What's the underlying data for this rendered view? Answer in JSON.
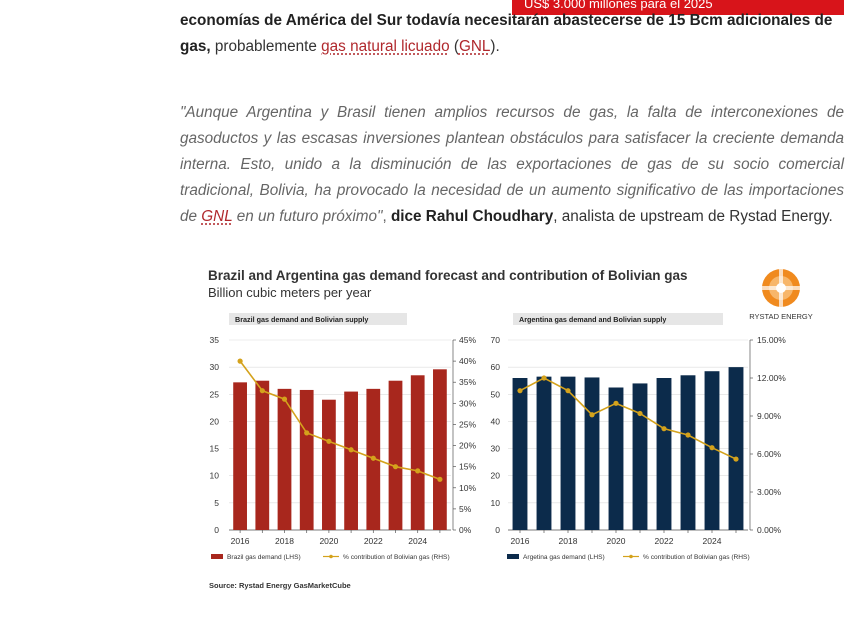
{
  "article": {
    "banner_text": "US$ 3.000 millones para el 2025",
    "line0_fragment": "economías",
    "p1_bold_a": "economías de América del Sur todavía necesitarán abastecerse de 15 Bcm adicionales de gas,",
    "p1_text_b": " probablemente ",
    "p1_link_a": "gas natural licuado",
    "p1_text_c": " (",
    "p1_link_b": "GNL",
    "p1_text_d": ").",
    "quote_a": "\"Aunque Argentina y Brasil tienen amplios recursos de gas, la falta de interconexiones de gasoductos y las escasas inversiones plantean obstáculos para satisfacer la creciente demanda interna. Esto, unido a la disminución de las exportaciones de gas de su socio comercial tradicional, Bolivia, ha provocado la necesidad de un aumento significativo de las importaciones de ",
    "quote_link": "GNL",
    "quote_b": " en un futuro próximo\"",
    "quote_c": ", ",
    "quote_bold": "dice Rahul Choudhary",
    "quote_d": ", analista de upstream de Rystad Energy."
  },
  "figure": {
    "title": "Brazil and Argentina gas demand forecast and contribution of Bolivian gas",
    "subtitle": "Billion cubic meters per year",
    "brand": "RYSTAD ENERGY",
    "source": "Source: Rystad Energy GasMarketCube",
    "colors": {
      "brazil_bar": "#a8271d",
      "argentina_bar": "#0c2b4b",
      "line": "#d4a21c",
      "panel": "#e6e6e6",
      "grid": "#dcdcdc"
    }
  },
  "chart_data": [
    {
      "type": "bar",
      "title": "Brazil gas demand and Bolivian supply",
      "x": [
        2016,
        2017,
        2018,
        2019,
        2020,
        2021,
        2022,
        2023,
        2024,
        2025
      ],
      "xticks": [
        "2016",
        "2018",
        "2020",
        "2022",
        "2024"
      ],
      "series": [
        {
          "name": "Brazil gas demand (LHS)",
          "type": "bar",
          "axis": "left",
          "values": [
            27.2,
            27.5,
            26.0,
            25.8,
            24.0,
            25.5,
            26.0,
            27.5,
            28.5,
            29.6
          ]
        },
        {
          "name": "% contribution of Bolivian gas (RHS)",
          "type": "line",
          "axis": "right",
          "values": [
            40,
            33,
            31,
            23,
            21,
            19,
            17,
            15,
            14,
            12
          ]
        }
      ],
      "ylim_left": [
        0,
        35
      ],
      "yticks_left": [
        "0",
        "5",
        "10",
        "15",
        "20",
        "25",
        "30",
        "35"
      ],
      "ylim_right": [
        0,
        45
      ],
      "yticks_right": [
        "0%",
        "5%",
        "10%",
        "15%",
        "20%",
        "25%",
        "30%",
        "35%",
        "40%",
        "45%"
      ],
      "legend_position": "bottom"
    },
    {
      "type": "bar",
      "title": "Argentina gas demand and Bolivian supply",
      "x": [
        2016,
        2017,
        2018,
        2019,
        2020,
        2021,
        2022,
        2023,
        2024,
        2025
      ],
      "xticks": [
        "2016",
        "2018",
        "2020",
        "2022",
        "2024"
      ],
      "series": [
        {
          "name": "Argetina gas demand (LHS)",
          "type": "bar",
          "axis": "left",
          "values": [
            56,
            56.5,
            56.5,
            56.2,
            52.5,
            54,
            56,
            57,
            58.5,
            60
          ]
        },
        {
          "name": "% contribution of Bolivian gas (RHS)",
          "type": "line",
          "axis": "right",
          "values": [
            11.0,
            12.0,
            11.0,
            9.1,
            10.0,
            9.2,
            8.0,
            7.5,
            6.5,
            5.6
          ]
        }
      ],
      "ylim_left": [
        0,
        70
      ],
      "yticks_left": [
        "0",
        "10",
        "20",
        "30",
        "40",
        "50",
        "60",
        "70"
      ],
      "ylim_right": [
        0,
        15
      ],
      "yticks_right": [
        "0.00%",
        "3.00%",
        "6.00%",
        "9.00%",
        "12.00%",
        "15.00%"
      ],
      "legend_position": "bottom"
    }
  ]
}
